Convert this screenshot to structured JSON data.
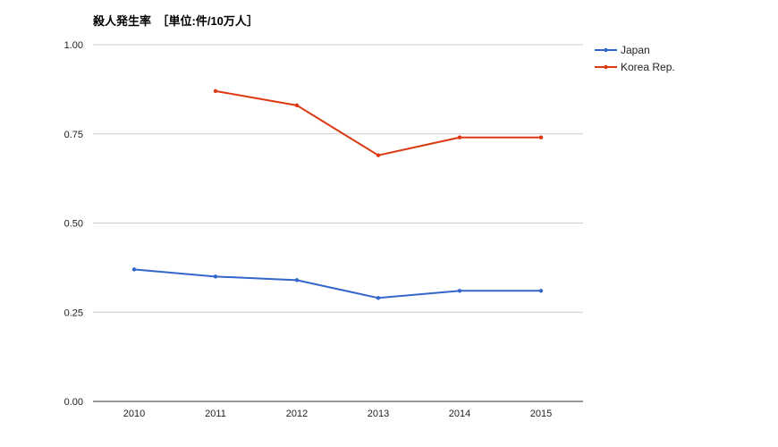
{
  "chart_data": {
    "type": "line",
    "title": "殺人発生率　［単位:件/10万人］",
    "xlabel": "",
    "ylabel": "",
    "categories": [
      "2010",
      "2011",
      "2012",
      "2013",
      "2014",
      "2015"
    ],
    "yticks": [
      "0.00",
      "0.25",
      "0.50",
      "0.75",
      "1.00"
    ],
    "ylim": [
      0,
      1
    ],
    "grid": true,
    "legend_position": "right",
    "series": [
      {
        "name": "Japan",
        "color": "#3366cc",
        "values": [
          0.37,
          0.35,
          0.34,
          0.29,
          0.31,
          0.31
        ]
      },
      {
        "name": "Korea Rep.",
        "color": "#dc3912",
        "values": [
          null,
          0.87,
          0.83,
          0.69,
          0.74,
          0.74
        ]
      }
    ]
  }
}
